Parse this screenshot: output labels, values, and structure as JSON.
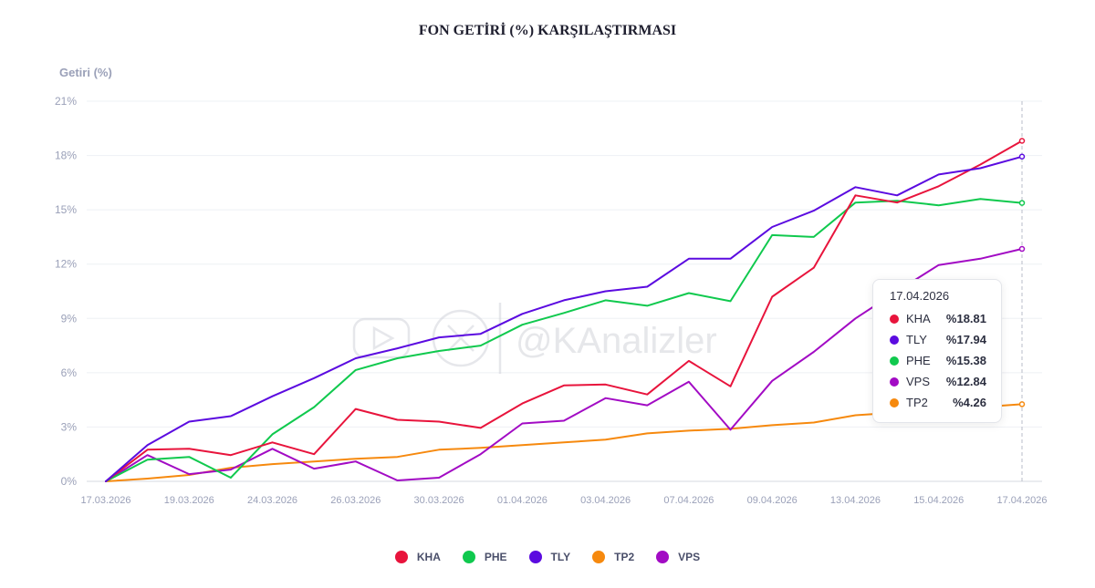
{
  "chart_data": {
    "type": "line",
    "title": "FON GETİRİ (%) KARŞILAŞTIRMASI",
    "ylabel": "Getiri (%)",
    "xlabel": "",
    "ylim": [
      0,
      21
    ],
    "yticks": [
      0,
      3,
      6,
      9,
      12,
      15,
      18,
      21
    ],
    "ytick_labels": [
      "0%",
      "3%",
      "6%",
      "9%",
      "12%",
      "15%",
      "18%",
      "21%"
    ],
    "x_tick_labels": [
      "17.03.2026",
      "19.03.2026",
      "24.03.2026",
      "26.03.2026",
      "30.03.2026",
      "01.04.2026",
      "03.04.2026",
      "07.04.2026",
      "09.04.2026",
      "13.04.2026",
      "15.04.2026",
      "17.04.2026"
    ],
    "point_count": 23,
    "series": [
      {
        "name": "KHA",
        "color": "#e8143c",
        "values": [
          0,
          1.75,
          1.8,
          1.45,
          2.15,
          1.5,
          4.0,
          3.4,
          3.3,
          2.95,
          4.3,
          5.3,
          5.35,
          4.8,
          6.65,
          5.25,
          10.2,
          11.8,
          15.8,
          15.4,
          16.3,
          17.5,
          18.81
        ]
      },
      {
        "name": "PHE",
        "color": "#10c94e",
        "values": [
          0,
          1.2,
          1.35,
          0.2,
          2.6,
          4.1,
          6.15,
          6.8,
          7.2,
          7.5,
          8.65,
          9.3,
          10.0,
          9.7,
          10.4,
          9.95,
          13.6,
          13.5,
          15.4,
          15.5,
          15.25,
          15.6,
          15.38
        ]
      },
      {
        "name": "TLY",
        "color": "#5b0be0",
        "values": [
          0,
          2.0,
          3.3,
          3.6,
          4.7,
          5.7,
          6.8,
          7.35,
          7.95,
          8.15,
          9.25,
          10.0,
          10.5,
          10.75,
          12.3,
          12.3,
          14.05,
          14.95,
          16.25,
          15.8,
          16.95,
          17.3,
          17.94
        ]
      },
      {
        "name": "TP2",
        "color": "#f6890e",
        "values": [
          0,
          0.15,
          0.35,
          0.75,
          0.95,
          1.1,
          1.25,
          1.35,
          1.75,
          1.85,
          2.0,
          2.15,
          2.3,
          2.65,
          2.8,
          2.9,
          3.1,
          3.25,
          3.65,
          3.8,
          3.95,
          4.1,
          4.26
        ]
      },
      {
        "name": "VPS",
        "color": "#a20bc4",
        "values": [
          0,
          1.45,
          0.4,
          0.65,
          1.8,
          0.7,
          1.1,
          0.05,
          0.2,
          1.5,
          3.2,
          3.35,
          4.6,
          4.2,
          5.5,
          2.85,
          5.55,
          7.15,
          9.0,
          10.5,
          11.95,
          12.3,
          12.84
        ]
      }
    ],
    "legend_order": [
      "KHA",
      "PHE",
      "TLY",
      "TP2",
      "VPS"
    ],
    "legend_position": "bottom-center"
  },
  "tooltip": {
    "date": "17.04.2026",
    "rows": [
      {
        "name": "KHA",
        "value": "%18.81",
        "color": "#e8143c"
      },
      {
        "name": "TLY",
        "value": "%17.94",
        "color": "#5b0be0"
      },
      {
        "name": "PHE",
        "value": "%15.38",
        "color": "#10c94e"
      },
      {
        "name": "VPS",
        "value": "%12.84",
        "color": "#a20bc4"
      },
      {
        "name": "TP2",
        "value": "%4.26",
        "color": "#f6890e"
      }
    ]
  },
  "watermark": {
    "text": "@KAnalizler",
    "icons": [
      "youtube-icon",
      "x-icon"
    ]
  }
}
